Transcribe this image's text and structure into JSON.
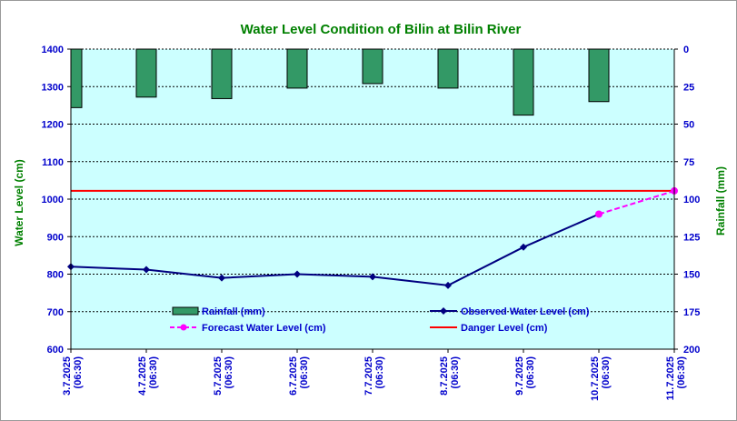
{
  "chart_data": {
    "type": "bar+line",
    "title": "Water Level Condition of Bilin at Bilin River",
    "ylabel_left": "Water Level (cm)",
    "ylabel_right": "Rainfall (mm)",
    "ylim_left": [
      600,
      1400
    ],
    "yticks_left": [
      "600",
      "700",
      "800",
      "900",
      "1000",
      "1100",
      "1200",
      "1300",
      "1400"
    ],
    "ylim_right": [
      0,
      200
    ],
    "yticks_right": [
      "0",
      "25",
      "50",
      "75",
      "100",
      "125",
      "150",
      "175",
      "200"
    ],
    "right_axis_inverted": true,
    "grid": "horizontal dashed",
    "categories": [
      [
        "3.7.2025",
        "(06:30)"
      ],
      [
        "4.7.2025",
        "(06:30)"
      ],
      [
        "5.7.2025",
        "(06:30)"
      ],
      [
        "6.7.2025",
        "(06:30)"
      ],
      [
        "7.7.2025",
        "(06:30)"
      ],
      [
        "8.7.2025",
        "(06:30)"
      ],
      [
        "9.7.2025",
        "(06:30)"
      ],
      [
        "10.7.2025",
        "(06:30)"
      ],
      [
        "11.7.2025",
        "(06:30)"
      ]
    ],
    "series": [
      {
        "name": "Rainfall (mm)",
        "kind": "bar",
        "axis": "right",
        "color": "#339966",
        "values": [
          39,
          32,
          33,
          26,
          23,
          26,
          44,
          35,
          null
        ]
      },
      {
        "name": "Observed Water Level (cm)",
        "kind": "line",
        "axis": "left",
        "color": "#000080",
        "values": [
          820,
          812,
          790,
          800,
          793,
          770,
          872,
          960,
          null
        ]
      },
      {
        "name": "Forecast Water Level (cm)",
        "kind": "dashed-line",
        "axis": "left",
        "color": "#ff00ff",
        "values": [
          null,
          null,
          null,
          null,
          null,
          null,
          null,
          960,
          1022
        ]
      },
      {
        "name": "Danger Level (cm)",
        "kind": "constant",
        "axis": "left",
        "color": "#ff0000",
        "value": 1022
      }
    ],
    "legend": "inside-bottom",
    "colors": {
      "plot_background": "#ccffff",
      "title": "#008000",
      "axis_labels": "#008000",
      "ticks": "#0000cc"
    }
  }
}
